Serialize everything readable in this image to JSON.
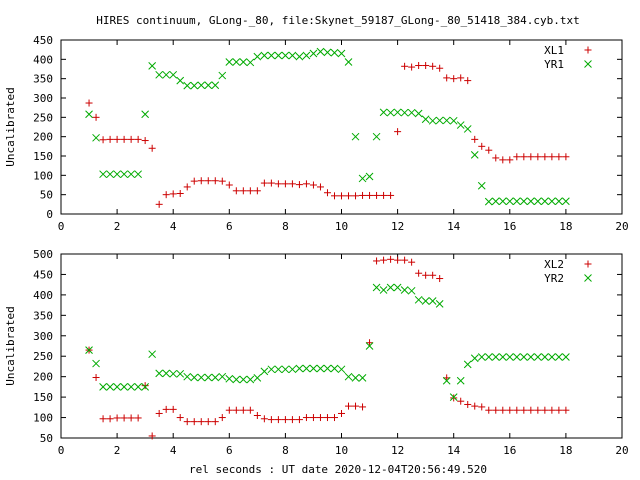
{
  "chart_data": {
    "title": "HIRES continuum, GLong-_80, file:Skynet_59187_GLong-_80_51418_384.cyb.txt",
    "xlabel": "rel seconds : UT date 2020-12-04T20:56:49.520",
    "panels": [
      {
        "type": "scatter",
        "ylabel": "Uncalibrated",
        "xlim": [
          0,
          20
        ],
        "ylim": [
          0,
          450
        ],
        "xticks": [
          0,
          2,
          4,
          6,
          8,
          10,
          12,
          14,
          16,
          18,
          20
        ],
        "yticks": [
          0,
          50,
          100,
          150,
          200,
          250,
          300,
          350,
          400,
          450
        ],
        "legend": "top-right",
        "series": [
          {
            "name": "XL1",
            "marker": "plus",
            "color": "#cc0000",
            "x": [
              1.0,
              1.25,
              1.5,
              1.75,
              2.0,
              2.25,
              2.5,
              2.75,
              3.0,
              3.25,
              3.5,
              3.75,
              4.0,
              4.25,
              4.5,
              4.75,
              5.0,
              5.25,
              5.5,
              5.75,
              6.0,
              6.25,
              6.5,
              6.75,
              7.0,
              7.25,
              7.5,
              7.75,
              8.0,
              8.25,
              8.5,
              8.75,
              9.0,
              9.25,
              9.5,
              9.75,
              10.0,
              10.25,
              10.5,
              10.75,
              11.0,
              11.25,
              11.5,
              11.75,
              12.0,
              12.25,
              12.5,
              12.75,
              13.0,
              13.25,
              13.5,
              13.75,
              14.0,
              14.25,
              14.5,
              14.75,
              15.0,
              15.25,
              15.5,
              15.75,
              16.0,
              16.25,
              16.5,
              16.75,
              17.0,
              17.25,
              17.5,
              17.75,
              18.0
            ],
            "y": [
              287,
              250,
              192,
              193,
              193,
              193,
              193,
              193,
              190,
              170,
              25,
              50,
              52,
              53,
              70,
              85,
              86,
              86,
              86,
              85,
              75,
              60,
              60,
              60,
              60,
              80,
              80,
              78,
              78,
              78,
              76,
              78,
              75,
              70,
              55,
              47,
              47,
              47,
              47,
              48,
              48,
              48,
              48,
              48,
              213,
              382,
              380,
              384,
              384,
              382,
              377,
              352,
              350,
              352,
              345,
              193,
              175,
              165,
              145,
              140,
              140,
              148,
              148,
              148,
              148,
              148,
              148,
              148,
              148
            ]
          },
          {
            "name": "YR1",
            "marker": "cross",
            "color": "#00aa00",
            "x": [
              1.0,
              1.25,
              1.5,
              1.75,
              2.0,
              2.25,
              2.5,
              2.75,
              3.0,
              3.25,
              3.5,
              3.75,
              4.0,
              4.25,
              4.5,
              4.75,
              5.0,
              5.25,
              5.5,
              5.75,
              6.0,
              6.25,
              6.5,
              6.75,
              7.0,
              7.25,
              7.5,
              7.75,
              8.0,
              8.25,
              8.5,
              8.75,
              9.0,
              9.25,
              9.5,
              9.75,
              10.0,
              10.25,
              10.5,
              10.75,
              11.0,
              11.25,
              11.5,
              11.75,
              12.0,
              12.25,
              12.5,
              12.75,
              13.0,
              13.25,
              13.5,
              13.75,
              14.0,
              14.25,
              14.5,
              14.75,
              15.0,
              15.25,
              15.5,
              15.75,
              16.0,
              16.25,
              16.5,
              16.75,
              17.0,
              17.25,
              17.5,
              17.75,
              18.0
            ],
            "y": [
              258,
              197,
              103,
              103,
              103,
              103,
              103,
              103,
              258,
              383,
              360,
              360,
              360,
              345,
              332,
              332,
              333,
              333,
              333,
              358,
              393,
              393,
              393,
              392,
              407,
              410,
              410,
              410,
              410,
              410,
              407,
              410,
              415,
              420,
              418,
              417,
              415,
              393,
              200,
              92,
              97,
              200,
              263,
              262,
              263,
              262,
              262,
              260,
              245,
              241,
              242,
              242,
              241,
              230,
              220,
              153,
              73,
              32,
              33,
              33,
              33,
              33,
              33,
              33,
              33,
              33,
              33,
              33,
              33
            ]
          }
        ]
      },
      {
        "type": "scatter",
        "ylabel": "Uncalibrated",
        "xlim": [
          0,
          20
        ],
        "ylim": [
          50,
          500
        ],
        "xticks": [
          0,
          2,
          4,
          6,
          8,
          10,
          12,
          14,
          16,
          18,
          20
        ],
        "yticks": [
          50,
          100,
          150,
          200,
          250,
          300,
          350,
          400,
          450,
          500
        ],
        "legend": "top-right",
        "series": [
          {
            "name": "XL2",
            "marker": "plus",
            "color": "#cc0000",
            "x": [
              1.0,
              1.25,
              1.5,
              1.75,
              2.0,
              2.25,
              2.5,
              2.75,
              3.0,
              3.25,
              3.5,
              3.75,
              4.0,
              4.25,
              4.5,
              4.75,
              5.0,
              5.25,
              5.5,
              5.75,
              6.0,
              6.25,
              6.5,
              6.75,
              7.0,
              7.25,
              7.5,
              7.75,
              8.0,
              8.25,
              8.5,
              8.75,
              9.0,
              9.25,
              9.5,
              9.75,
              10.0,
              10.25,
              10.5,
              10.75,
              11.0,
              11.25,
              11.5,
              11.75,
              12.0,
              12.25,
              12.5,
              12.75,
              13.0,
              13.25,
              13.5,
              13.75,
              14.0,
              14.25,
              14.5,
              14.75,
              15.0,
              15.25,
              15.5,
              15.75,
              16.0,
              16.25,
              16.5,
              16.75,
              17.0,
              17.25,
              17.5,
              17.75,
              18.0
            ],
            "y": [
              265,
              198,
              97,
              97,
              99,
              99,
              99,
              99,
              178,
              55,
              110,
              120,
              120,
              100,
              90,
              90,
              90,
              90,
              90,
              100,
              118,
              118,
              118,
              118,
              105,
              97,
              95,
              95,
              95,
              95,
              95,
              100,
              100,
              100,
              100,
              100,
              110,
              128,
              128,
              126,
              283,
              483,
              485,
              487,
              485,
              485,
              480,
              453,
              448,
              448,
              440,
              197,
              148,
              140,
              132,
              128,
              126,
              118,
              118,
              118,
              118,
              118,
              118,
              118,
              118,
              118,
              118,
              118,
              118
            ]
          },
          {
            "name": "YR2",
            "marker": "cross",
            "color": "#00aa00",
            "x": [
              1.0,
              1.25,
              1.5,
              1.75,
              2.0,
              2.25,
              2.5,
              2.75,
              3.0,
              3.25,
              3.5,
              3.75,
              4.0,
              4.25,
              4.5,
              4.75,
              5.0,
              5.25,
              5.5,
              5.75,
              6.0,
              6.25,
              6.5,
              6.75,
              7.0,
              7.25,
              7.5,
              7.75,
              8.0,
              8.25,
              8.5,
              8.75,
              9.0,
              9.25,
              9.5,
              9.75,
              10.0,
              10.25,
              10.5,
              10.75,
              11.0,
              11.25,
              11.5,
              11.75,
              12.0,
              12.25,
              12.5,
              12.75,
              13.0,
              13.25,
              13.5,
              13.75,
              14.0,
              14.25,
              14.5,
              14.75,
              15.0,
              15.25,
              15.5,
              15.75,
              16.0,
              16.25,
              16.5,
              16.75,
              17.0,
              17.25,
              17.5,
              17.75,
              18.0
            ],
            "y": [
              265,
              232,
              175,
              175,
              175,
              175,
              175,
              175,
              175,
              255,
              208,
              208,
              207,
              207,
              200,
              198,
              198,
              198,
              198,
              200,
              195,
              193,
              193,
              193,
              197,
              213,
              218,
              218,
              218,
              218,
              220,
              220,
              220,
              220,
              220,
              220,
              218,
              200,
              197,
              197,
              275,
              418,
              412,
              418,
              418,
              412,
              410,
              388,
              385,
              385,
              378,
              190,
              150,
              190,
              230,
              245,
              248,
              248,
              248,
              248,
              248,
              248,
              248,
              248,
              248,
              248,
              248,
              248,
              248
            ]
          }
        ]
      }
    ]
  }
}
